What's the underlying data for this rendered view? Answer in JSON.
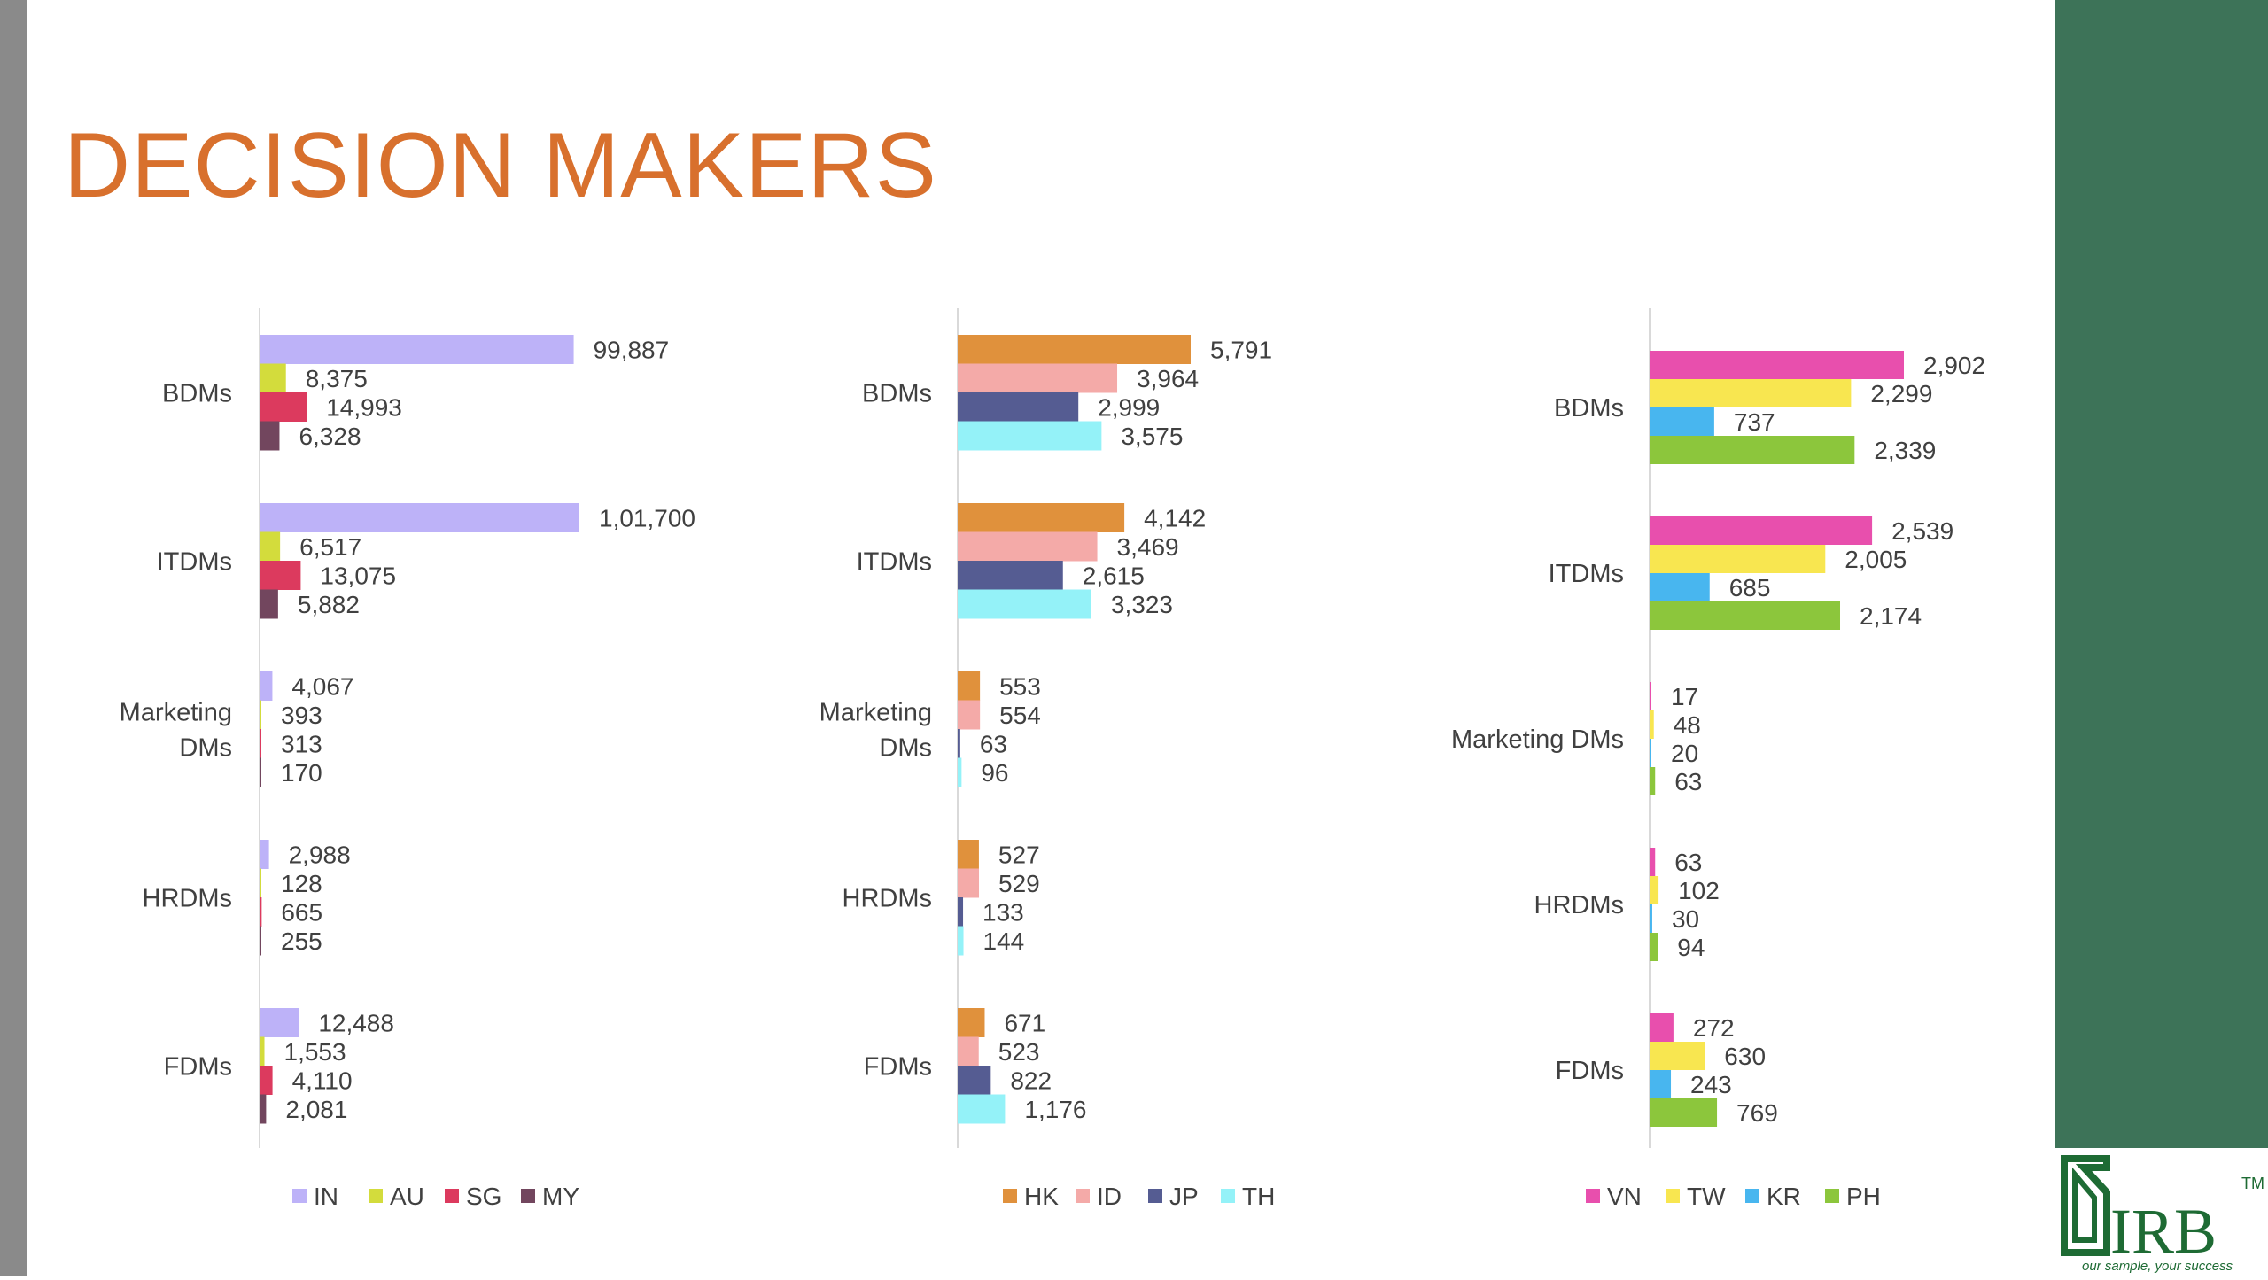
{
  "title": "DECISION MAKERS",
  "colors": {
    "title": "#d8702d",
    "left_bar": "#8a8a8a",
    "right_panel": "#3d7358",
    "logo": "#1e6b34"
  },
  "logo": {
    "text": "IRB",
    "tm": "TM",
    "tagline": "our sample, your success"
  },
  "chart_data": [
    {
      "type": "bar",
      "orientation": "horizontal",
      "categories": [
        "BDMs",
        "ITDMs",
        "Marketing DMs",
        "HRDMs",
        "FDMs"
      ],
      "series": [
        {
          "name": "IN",
          "color": "#bdb2f8",
          "values": [
            99887,
            101700,
            4067,
            2988,
            12488
          ],
          "labels": [
            "99,887",
            "1,01,700",
            "4,067",
            "2,988",
            "12,488"
          ]
        },
        {
          "name": "AU",
          "color": "#d3dc3c",
          "values": [
            8375,
            6517,
            393,
            128,
            1553
          ],
          "labels": [
            "8,375",
            "6,517",
            "393",
            "128",
            "1,553"
          ]
        },
        {
          "name": "SG",
          "color": "#dc3a5e",
          "values": [
            14993,
            13075,
            313,
            665,
            4110
          ],
          "labels": [
            "14,993",
            "13,075",
            "313",
            "665",
            "4,110"
          ]
        },
        {
          "name": "MY",
          "color": "#72465e",
          "values": [
            6328,
            5882,
            170,
            255,
            2081
          ],
          "labels": [
            "6,328",
            "5,882",
            "170",
            "255",
            "2,081"
          ]
        }
      ],
      "legend": "bottom"
    },
    {
      "type": "bar",
      "orientation": "horizontal",
      "categories": [
        "BDMs",
        "ITDMs",
        "Marketing DMs",
        "HRDMs",
        "FDMs"
      ],
      "series": [
        {
          "name": "HK",
          "color": "#e0913c",
          "values": [
            5791,
            4142,
            553,
            527,
            671
          ],
          "labels": [
            "5,791",
            "4,142",
            "553",
            "527",
            "671"
          ]
        },
        {
          "name": "ID",
          "color": "#f4aaa8",
          "values": [
            3964,
            3469,
            554,
            529,
            523
          ],
          "labels": [
            "3,964",
            "3,469",
            "554",
            "529",
            "523"
          ]
        },
        {
          "name": "JP",
          "color": "#555c92",
          "values": [
            2999,
            2615,
            63,
            133,
            822
          ],
          "labels": [
            "2,999",
            "2,615",
            "63",
            "133",
            "822"
          ]
        },
        {
          "name": "TH",
          "color": "#94f2f8",
          "values": [
            3575,
            3323,
            96,
            144,
            1176
          ],
          "labels": [
            "3,575",
            "3,323",
            "96",
            "144",
            "1,176"
          ]
        }
      ],
      "legend": "bottom"
    },
    {
      "type": "bar",
      "orientation": "horizontal",
      "categories": [
        "BDMs",
        "ITDMs",
        "Marketing DMs",
        "HRDMs",
        "FDMs"
      ],
      "series": [
        {
          "name": "VN",
          "color": "#e84fad",
          "values": [
            2902,
            2539,
            17,
            63,
            272
          ],
          "labels": [
            "2,902",
            "2,539",
            "17",
            "63",
            "272"
          ]
        },
        {
          "name": "TW",
          "color": "#f8e650",
          "values": [
            2299,
            2005,
            48,
            102,
            630
          ],
          "labels": [
            "2,299",
            "2,005",
            "48",
            "102",
            "630"
          ]
        },
        {
          "name": "KR",
          "color": "#48b6ef",
          "values": [
            737,
            685,
            20,
            30,
            243
          ],
          "labels": [
            "737",
            "685",
            "20",
            "30",
            "243"
          ]
        },
        {
          "name": "PH",
          "color": "#8cc63c",
          "values": [
            2339,
            2174,
            63,
            94,
            769
          ],
          "labels": [
            "2,339",
            "2,174",
            "63",
            "94",
            "769"
          ]
        }
      ],
      "legend": "bottom"
    }
  ]
}
